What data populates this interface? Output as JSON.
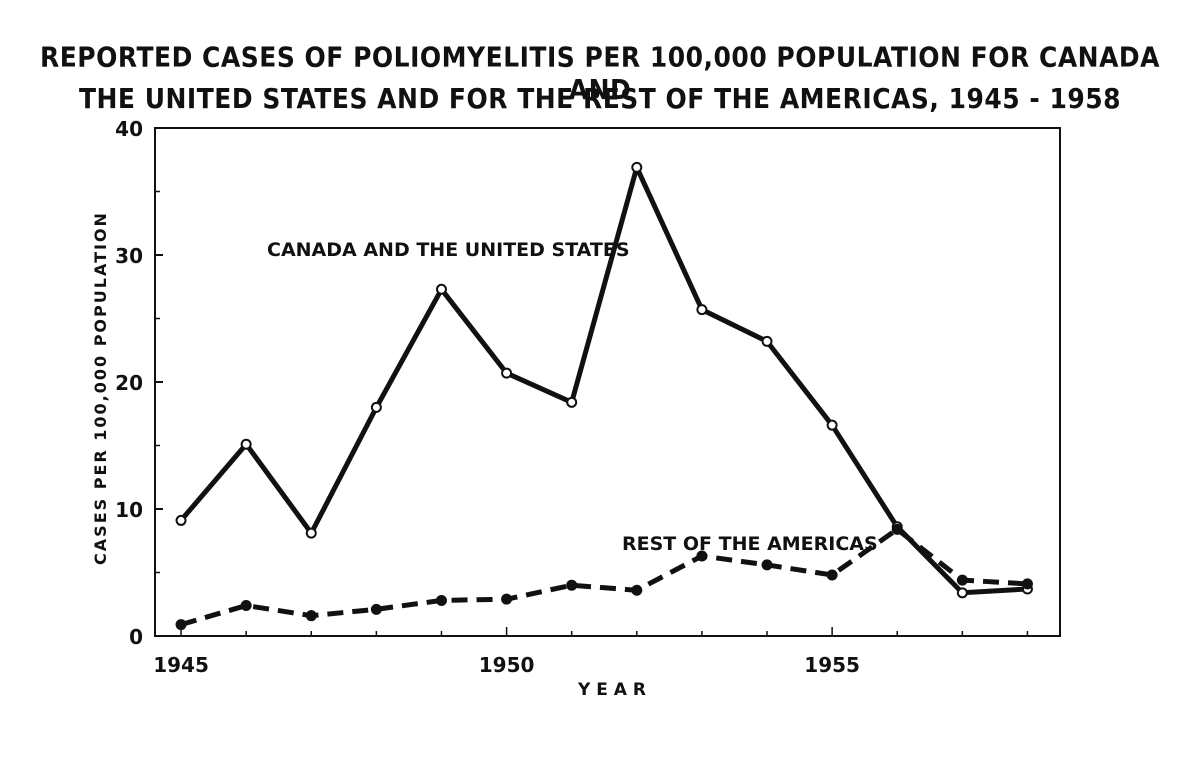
{
  "chart_data": {
    "type": "line",
    "title": "REPORTED CASES OF POLIOMYELITIS PER 100,000 POPULATION FOR CANADA AND",
    "subtitle": "THE UNITED STATES AND FOR THE REST OF THE AMERICAS, 1945 - 1958",
    "xlabel": "Y E A R",
    "ylabel": "CASES PER 100,000 POPULATION",
    "xlim": [
      1944.6,
      1958.5
    ],
    "ylim": [
      0,
      40
    ],
    "x_ticks": [
      1945,
      1950,
      1955
    ],
    "x_tick_labels": [
      "1945",
      "1950",
      "1955"
    ],
    "y_ticks": [
      0,
      10,
      20,
      30,
      40
    ],
    "y_tick_labels": [
      "0",
      "10",
      "20",
      "30",
      "40"
    ],
    "grid": false,
    "x": [
      1945,
      1946,
      1947,
      1948,
      1949,
      1950,
      1951,
      1952,
      1953,
      1954,
      1955,
      1956,
      1957,
      1958
    ],
    "series": [
      {
        "name": "CANADA AND THE UNITED STATES",
        "style": "solid",
        "marker": "open-circle",
        "color": "#111111",
        "values": [
          9.1,
          15.1,
          8.1,
          18.0,
          27.3,
          20.7,
          18.4,
          36.9,
          25.7,
          23.2,
          16.6,
          8.6,
          3.4,
          3.7
        ]
      },
      {
        "name": "REST OF THE AMERICAS",
        "style": "dashed",
        "marker": "filled-circle",
        "color": "#111111",
        "values": [
          0.9,
          2.4,
          1.6,
          2.1,
          2.8,
          2.9,
          4.0,
          3.6,
          6.3,
          5.6,
          4.8,
          8.4,
          4.4,
          4.1
        ]
      }
    ]
  }
}
